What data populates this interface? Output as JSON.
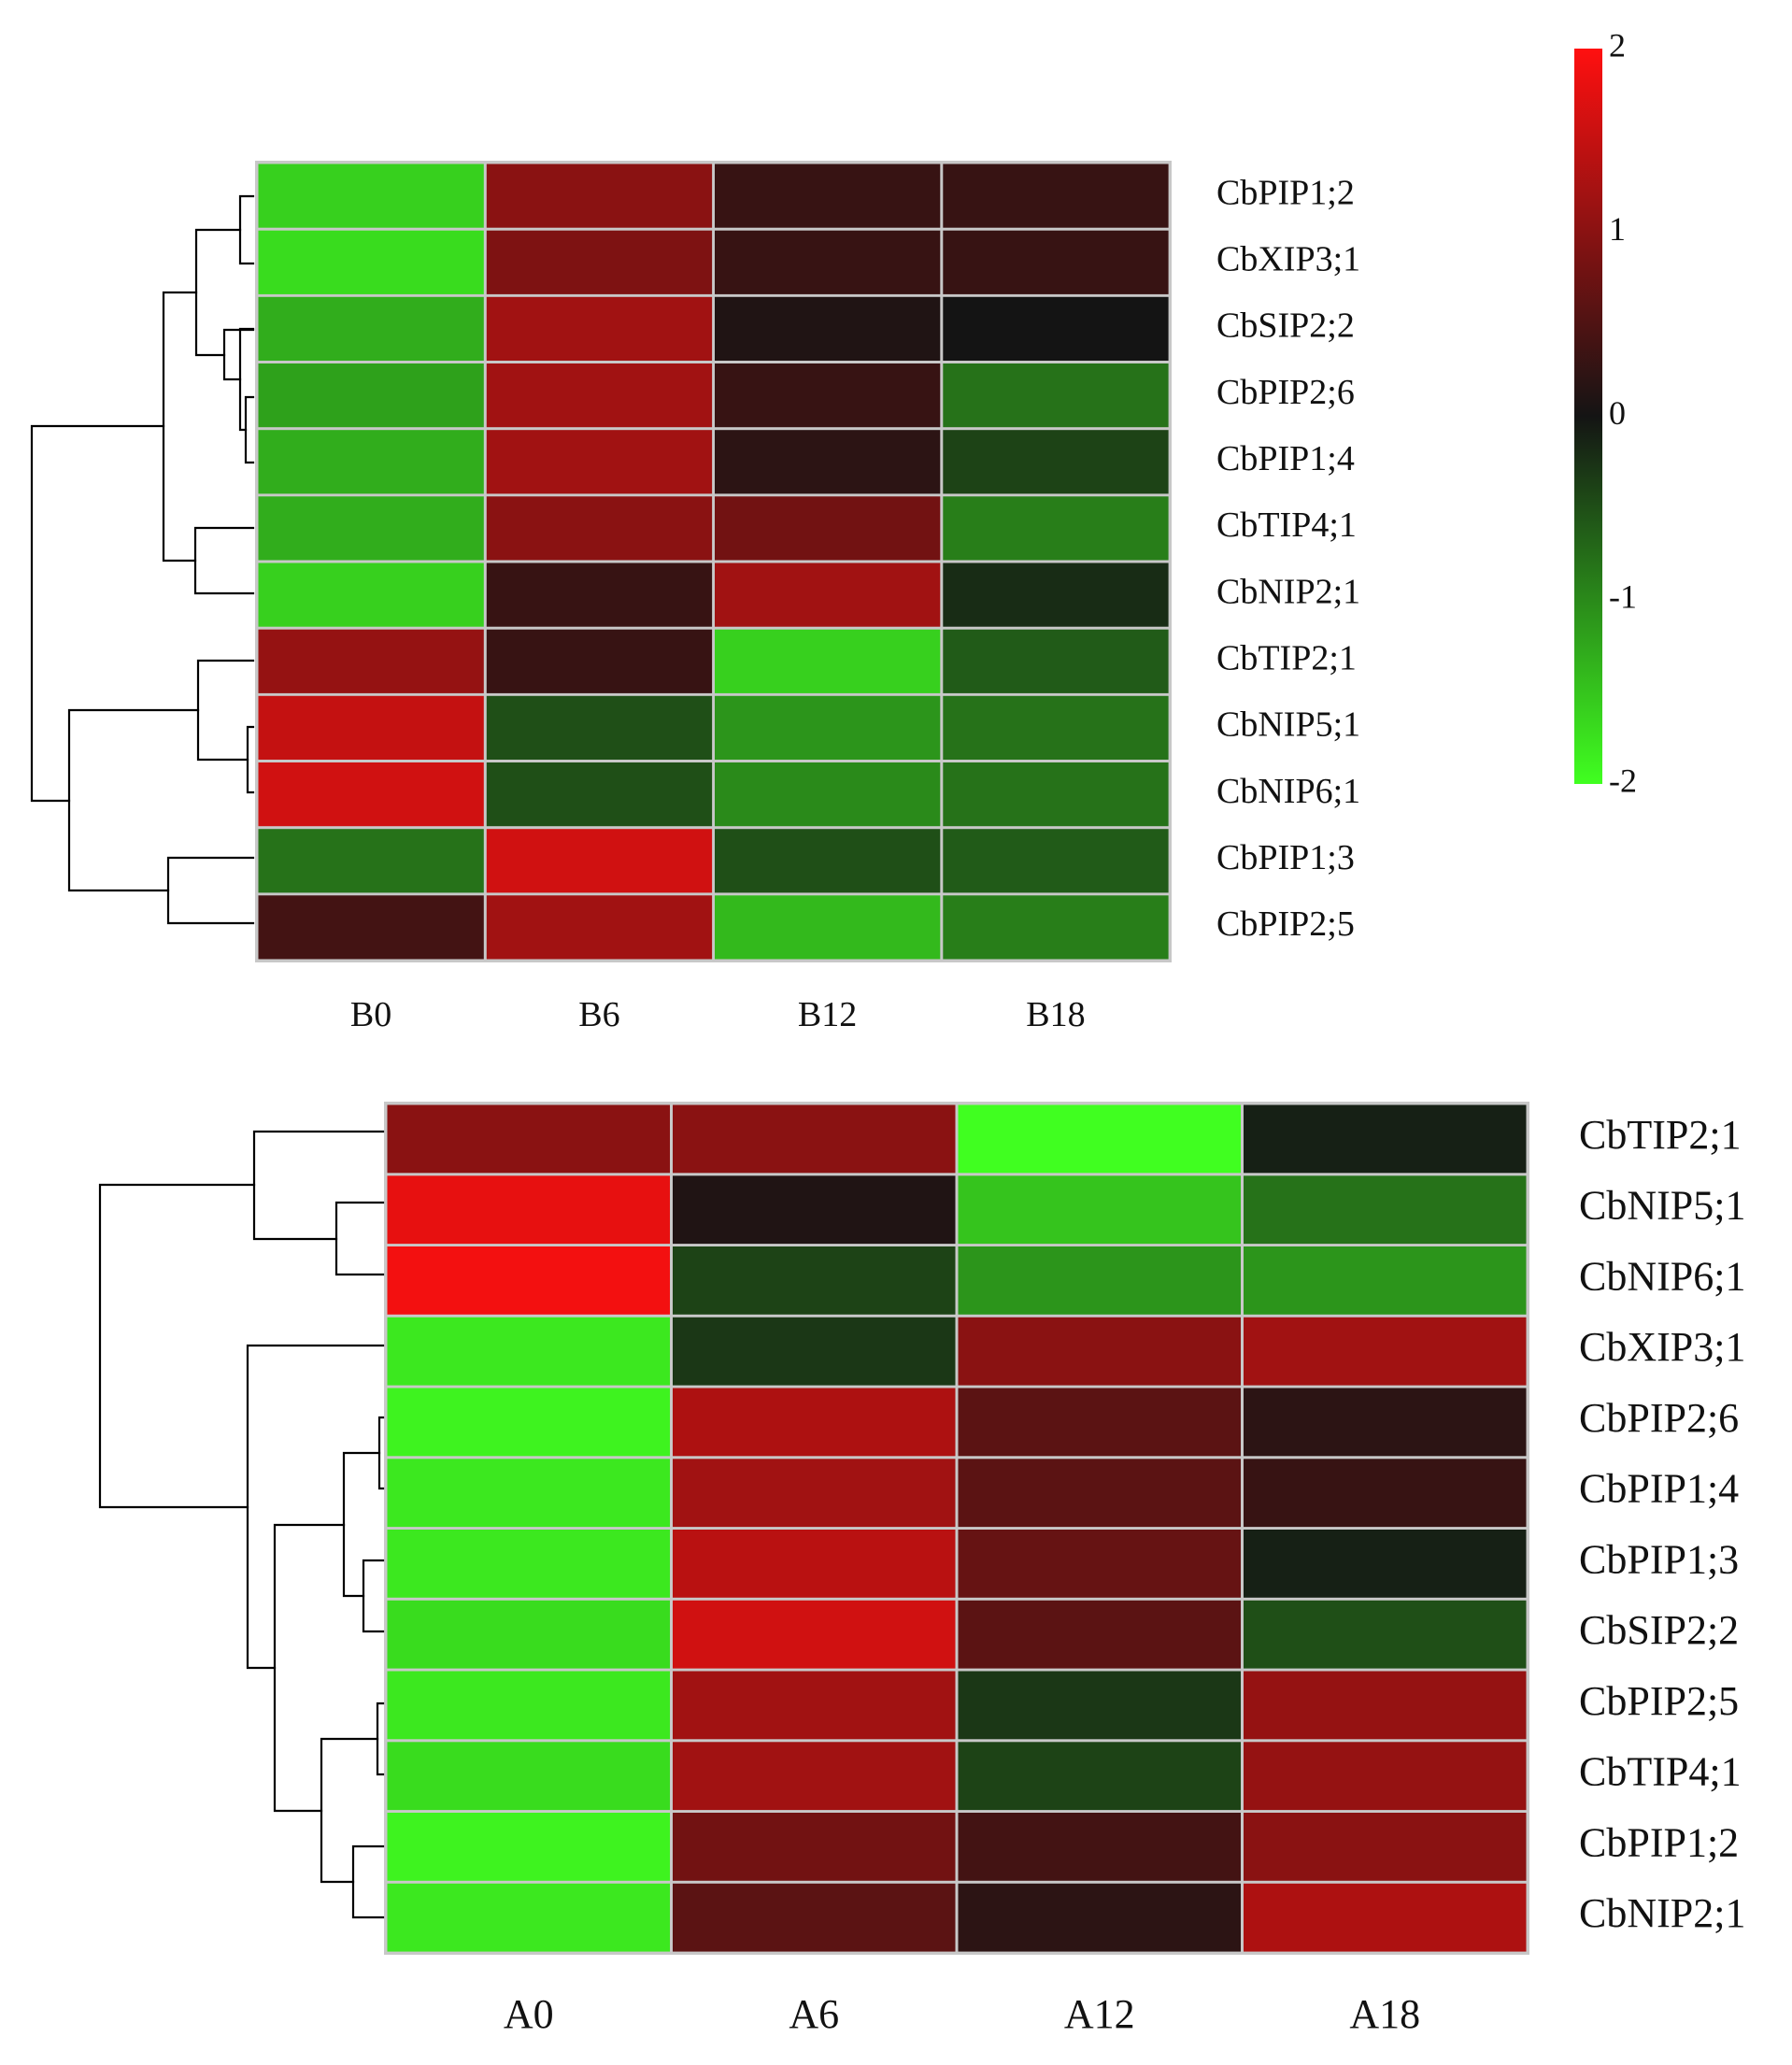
{
  "chart_data": [
    {
      "type": "heatmap",
      "columns": [
        "B0",
        "B6",
        "B12",
        "B18"
      ],
      "rows": [
        "CbPIP1;2",
        "CbXIP3;1",
        "CbSIP2;2",
        "CbPIP2;6",
        "CbPIP1;4",
        "CbTIP4;1",
        "CbNIP2;1",
        "CbTIP2;1",
        "CbNIP5;1",
        "CbNIP6;1",
        "CbPIP1;3",
        "CbPIP2;5"
      ],
      "values": [
        [
          -1.6,
          1.0,
          0.3,
          0.3
        ],
        [
          -1.7,
          0.9,
          0.3,
          0.3
        ],
        [
          -1.3,
          1.2,
          0.1,
          0.0
        ],
        [
          -1.2,
          1.2,
          0.3,
          -0.8
        ],
        [
          -1.3,
          1.2,
          0.2,
          -0.4
        ],
        [
          -1.3,
          1.0,
          0.8,
          -0.9
        ],
        [
          -1.6,
          0.3,
          1.2,
          -0.2
        ],
        [
          1.1,
          0.3,
          -1.6,
          -0.6
        ],
        [
          1.5,
          -0.5,
          -1.1,
          -0.8
        ],
        [
          1.6,
          -0.5,
          -1.0,
          -0.8
        ],
        [
          -0.8,
          1.6,
          -0.5,
          -0.6
        ],
        [
          0.4,
          1.2,
          -1.4,
          -0.9
        ]
      ]
    },
    {
      "type": "heatmap",
      "columns": [
        "A0",
        "A6",
        "A12",
        "A18"
      ],
      "rows": [
        "CbTIP2;1",
        "CbNIP5;1",
        "CbNIP6;1",
        "CbXIP3;1",
        "CbPIP2;6",
        "CbPIP1;4",
        "CbPIP1;3",
        "CbSIP2;2",
        "CbPIP2;5",
        "CbTIP4;1",
        "CbPIP1;2",
        "CbNIP2;1"
      ],
      "values": [
        [
          1.0,
          1.0,
          -2.0,
          -0.1
        ],
        [
          1.8,
          0.1,
          -1.5,
          -0.8
        ],
        [
          1.9,
          -0.4,
          -1.1,
          -1.1
        ],
        [
          -1.8,
          -0.3,
          1.0,
          1.2
        ],
        [
          -1.9,
          1.3,
          0.6,
          0.2
        ],
        [
          -1.8,
          1.2,
          0.6,
          0.3
        ],
        [
          -1.8,
          1.4,
          0.7,
          -0.1
        ],
        [
          -1.7,
          1.6,
          0.6,
          -0.5
        ],
        [
          -1.8,
          1.2,
          -0.3,
          1.1
        ],
        [
          -1.7,
          1.2,
          -0.4,
          1.1
        ],
        [
          -1.9,
          0.8,
          0.4,
          1.0
        ],
        [
          -1.8,
          0.6,
          0.2,
          1.3
        ]
      ]
    }
  ],
  "color_scale": {
    "tick_labels": [
      "2",
      "1",
      "0",
      "-1",
      "-2"
    ],
    "tick_values": [
      2,
      1,
      0,
      -1,
      -2
    ],
    "min": -2,
    "max": 2,
    "low_color": "#40ff20",
    "mid_color": "#141414",
    "high_color": "#ff1010"
  }
}
